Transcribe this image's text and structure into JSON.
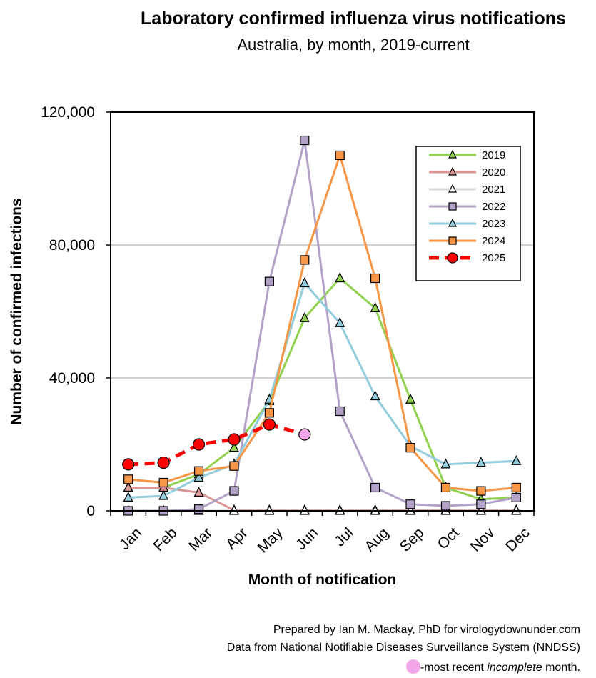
{
  "page": {
    "title": "Laboratory confirmed influenza virus notifications",
    "subtitle": "Australia, by month, 2019-current",
    "footer_line1": "Prepared by Ian M. Mackay, PhD for virologydownunder.com",
    "footer_line2": "Data from National Notifiable Diseases Surveillance System (NNDSS)",
    "footer_line3_prefix": "-most recent ",
    "footer_line3_emphasis": "incomplete",
    "footer_line3_suffix": " month."
  },
  "chart_data": {
    "type": "line",
    "title": "Laboratory confirmed influenza virus notifications",
    "subtitle": "Australia, by month, 2019-current",
    "xlabel": "Month of notification",
    "ylabel": "Number of confirmed infections",
    "categories": [
      "Jan",
      "Feb",
      "Mar",
      "Apr",
      "May",
      "Jun",
      "Jul",
      "Aug",
      "Sep",
      "Oct",
      "Nov",
      "Dec"
    ],
    "ylim": [
      0,
      120000
    ],
    "yticks": [
      0,
      40000,
      80000,
      120000
    ],
    "ytick_labels": [
      "0",
      "40,000",
      "80,000",
      "120,000"
    ],
    "grid": "horizontal",
    "legend_position": "top-right",
    "series": [
      {
        "name": "2019",
        "color": "#92d050",
        "marker": "triangle",
        "marker_fill": "#92d050",
        "dashed": false,
        "values": [
          7000,
          7000,
          11000,
          19000,
          33000,
          58000,
          70000,
          61000,
          33500,
          7000,
          3500,
          4000
        ]
      },
      {
        "name": "2020",
        "color": "#d99594",
        "marker": "triangle",
        "marker_fill": "#d99594",
        "dashed": false,
        "values": [
          7000,
          7000,
          5500,
          200,
          200,
          200,
          200,
          200,
          200,
          200,
          200,
          200
        ]
      },
      {
        "name": "2021",
        "color": "#d9d9d9",
        "marker": "triangle",
        "marker_fill": "#ffffff",
        "dashed": false,
        "values": [
          0,
          0,
          0,
          0,
          0,
          0,
          0,
          0,
          0,
          0,
          0,
          0
        ]
      },
      {
        "name": "2022",
        "color": "#b3a2c7",
        "marker": "square",
        "marker_fill": "#b3a2c7",
        "dashed": false,
        "values": [
          0,
          0,
          500,
          6000,
          69000,
          111500,
          30000,
          7000,
          2000,
          1500,
          2000,
          4000
        ]
      },
      {
        "name": "2023",
        "color": "#93cddd",
        "marker": "triangle",
        "marker_fill": "#93cddd",
        "dashed": false,
        "values": [
          4000,
          4500,
          10000,
          14000,
          33500,
          68500,
          56500,
          34500,
          19500,
          14000,
          14500,
          15000
        ]
      },
      {
        "name": "2024",
        "color": "#f79646",
        "marker": "square",
        "marker_fill": "#f79646",
        "dashed": false,
        "values": [
          9500,
          8500,
          12000,
          13500,
          29500,
          75500,
          107000,
          70000,
          19000,
          7000,
          6000,
          7000
        ]
      },
      {
        "name": "2025",
        "color": "#ff0000",
        "marker": "circle",
        "marker_fill": "#ff0000",
        "dashed": true,
        "values": [
          14000,
          14500,
          20000,
          21500,
          26000,
          23000,
          null,
          null,
          null,
          null,
          null,
          null
        ],
        "incomplete_index": 5,
        "incomplete_color": "#f4a6ea"
      }
    ]
  }
}
